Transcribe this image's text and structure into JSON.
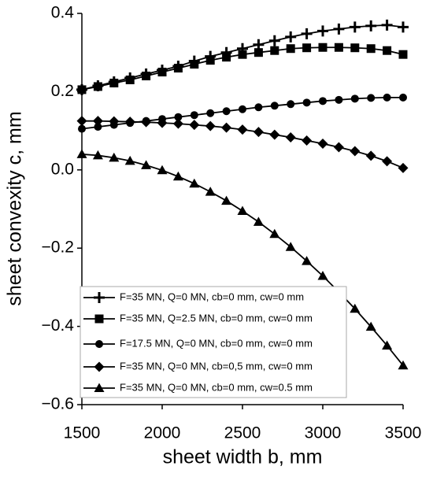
{
  "chart_data": {
    "type": "line",
    "xlabel": "sheet width b, mm",
    "ylabel": "sheet convexity c, mm",
    "x": [
      1500,
      1600,
      1700,
      1800,
      1900,
      2000,
      2100,
      2200,
      2300,
      2400,
      2500,
      2600,
      2700,
      2800,
      2900,
      3000,
      3100,
      3200,
      3300,
      3400,
      3500
    ],
    "xlim": [
      1500,
      3500
    ],
    "xticks": [
      1500,
      2000,
      2500,
      3000,
      3500
    ],
    "ylim": [
      -0.6,
      0.4
    ],
    "yticks": [
      {
        "value": -0.6,
        "label": "−0.6"
      },
      {
        "value": -0.4,
        "label": "−0.4"
      },
      {
        "value": -0.2,
        "label": "−0.2"
      },
      {
        "value": 0,
        "label": "0.0"
      },
      0.2,
      0.4
    ],
    "series": [
      {
        "name": "F=35 MN, Q=0 MN, cb=0 mm, cw=0 mm",
        "color": "#000000",
        "marker": "plus",
        "values": [
          0.205,
          0.215,
          0.225,
          0.235,
          0.245,
          0.255,
          0.265,
          0.278,
          0.29,
          0.3,
          0.31,
          0.32,
          0.33,
          0.34,
          0.348,
          0.355,
          0.36,
          0.365,
          0.368,
          0.37,
          0.365
        ]
      },
      {
        "name": "F=35 MN, Q=2.5 MN, cb=0 mm, cw=0 mm",
        "color": "#000000",
        "marker": "square",
        "values": [
          0.205,
          0.213,
          0.222,
          0.23,
          0.24,
          0.25,
          0.26,
          0.27,
          0.28,
          0.288,
          0.295,
          0.3,
          0.305,
          0.31,
          0.312,
          0.313,
          0.313,
          0.312,
          0.31,
          0.305,
          0.295
        ]
      },
      {
        "name": "F=17.5 MN, Q=0 MN, cb=0 mm, cw=0 mm",
        "color": "#000000",
        "marker": "circle",
        "values": [
          0.105,
          0.11,
          0.115,
          0.12,
          0.125,
          0.13,
          0.135,
          0.14,
          0.145,
          0.15,
          0.155,
          0.16,
          0.164,
          0.168,
          0.172,
          0.176,
          0.179,
          0.182,
          0.184,
          0.185,
          0.185
        ]
      },
      {
        "name": "F=35 MN, Q=0 MN, cb=0,5 mm, cw=0 mm",
        "color": "#000000",
        "marker": "diamond",
        "values": [
          0.125,
          0.125,
          0.124,
          0.123,
          0.122,
          0.12,
          0.118,
          0.115,
          0.112,
          0.108,
          0.103,
          0.097,
          0.09,
          0.083,
          0.075,
          0.067,
          0.058,
          0.048,
          0.036,
          0.022,
          0.005
        ]
      },
      {
        "name": "F=35 MN, Q=0 MN, cb=0 mm, cw=0.5 mm",
        "color": "#000000",
        "marker": "triangle",
        "values": [
          0.04,
          0.037,
          0.031,
          0.023,
          0.012,
          -0.001,
          -0.017,
          -0.035,
          -0.056,
          -0.079,
          -0.105,
          -0.133,
          -0.164,
          -0.197,
          -0.233,
          -0.271,
          -0.312,
          -0.355,
          -0.401,
          -0.449,
          -0.5
        ]
      }
    ]
  }
}
